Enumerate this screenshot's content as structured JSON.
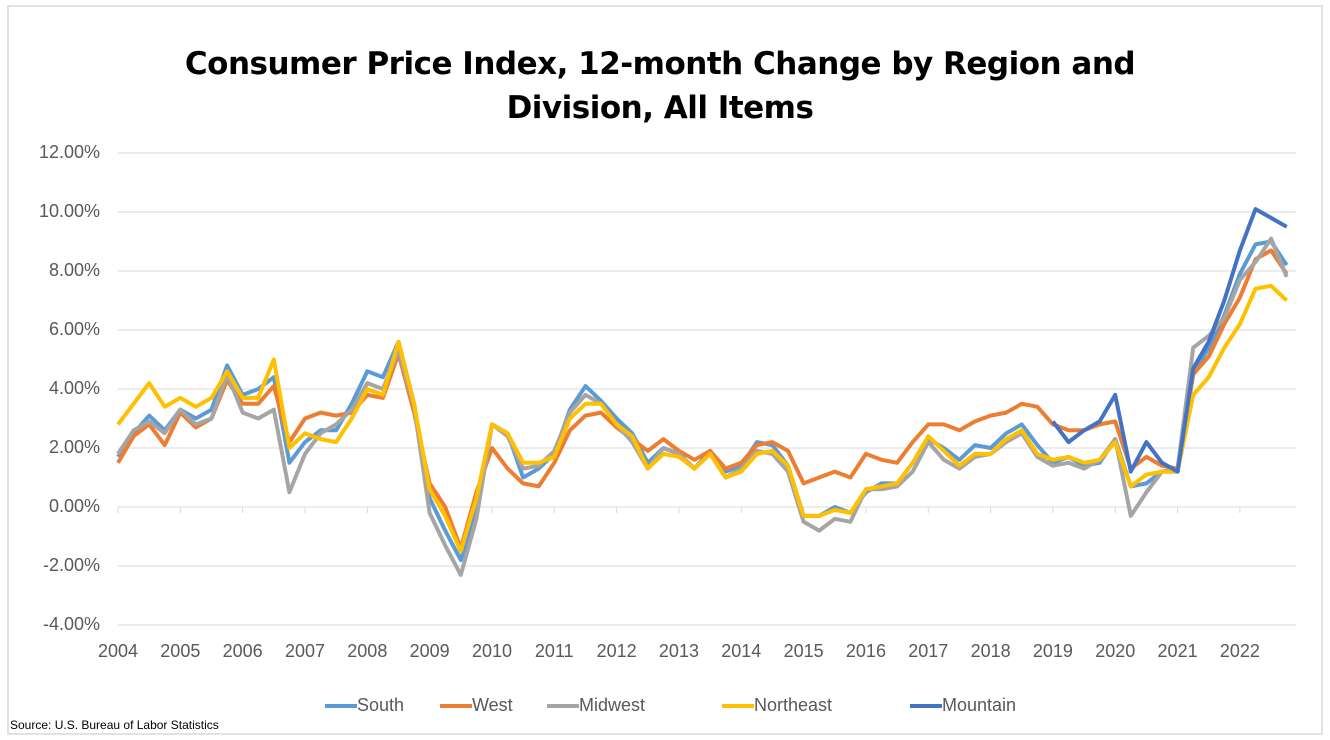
{
  "chart_data": {
    "type": "line",
    "title": "Consumer Price Index, 12-month Change by Region and Division, All Items",
    "source": "Source: U.S. Bureau of Labor Statistics",
    "x": [
      2004,
      2004.25,
      2004.5,
      2004.75,
      2005,
      2005.25,
      2005.5,
      2005.75,
      2006,
      2006.25,
      2006.5,
      2006.75,
      2007,
      2007.25,
      2007.5,
      2007.75,
      2008,
      2008.25,
      2008.5,
      2008.75,
      2009,
      2009.25,
      2009.5,
      2009.75,
      2010,
      2010.25,
      2010.5,
      2010.75,
      2011,
      2011.25,
      2011.5,
      2011.75,
      2012,
      2012.25,
      2012.5,
      2012.75,
      2013,
      2013.25,
      2013.5,
      2013.75,
      2014,
      2014.25,
      2014.5,
      2014.75,
      2015,
      2015.25,
      2015.5,
      2015.75,
      2016,
      2016.25,
      2016.5,
      2016.75,
      2017,
      2017.25,
      2017.5,
      2017.75,
      2018,
      2018.25,
      2018.5,
      2018.75,
      2019,
      2019.25,
      2019.5,
      2019.75,
      2020,
      2020.25,
      2020.5,
      2020.75,
      2021,
      2021.25,
      2021.5,
      2021.75,
      2022,
      2022.25,
      2022.5,
      2022.75
    ],
    "xlim": [
      2004,
      2022.9
    ],
    "xticks": [
      2004,
      2005,
      2006,
      2007,
      2008,
      2009,
      2010,
      2011,
      2012,
      2013,
      2014,
      2015,
      2016,
      2017,
      2018,
      2019,
      2020,
      2021,
      2022
    ],
    "ylim": [
      -4,
      12
    ],
    "yticks": [
      {
        "value": -4,
        "label": "-4.00%"
      },
      {
        "value": -2,
        "label": "-2.00%"
      },
      {
        "value": 0,
        "label": "0.00%"
      },
      {
        "value": 2,
        "label": "2.00%"
      },
      {
        "value": 4,
        "label": "4.00%"
      },
      {
        "value": 6,
        "label": "6.00%"
      },
      {
        "value": 8,
        "label": "8.00%"
      },
      {
        "value": 10,
        "label": "10.00%"
      },
      {
        "value": 12,
        "label": "12.00%"
      }
    ],
    "grid": true,
    "legend": "bottom",
    "series": [
      {
        "name": "South",
        "color": "#5b9bd5",
        "values": [
          1.7,
          2.5,
          3.1,
          2.6,
          3.3,
          3.0,
          3.3,
          4.8,
          3.8,
          4.0,
          4.4,
          1.5,
          2.2,
          2.6,
          2.6,
          3.5,
          4.6,
          4.4,
          5.6,
          3.5,
          0.3,
          -0.8,
          -1.8,
          0.0,
          2.8,
          2.5,
          1.0,
          1.3,
          1.8,
          3.3,
          4.1,
          3.6,
          3.0,
          2.5,
          1.5,
          2.0,
          1.8,
          1.3,
          1.9,
          1.2,
          1.4,
          2.2,
          2.1,
          1.4,
          -0.3,
          -0.3,
          0.0,
          -0.2,
          0.5,
          0.8,
          0.8,
          1.5,
          2.3,
          2.0,
          1.6,
          2.1,
          2.0,
          2.5,
          2.8,
          2.1,
          1.5,
          1.7,
          1.4,
          1.5,
          2.3,
          0.7,
          0.8,
          1.2,
          1.2,
          4.5,
          5.4,
          6.5,
          7.9,
          8.9,
          9.0,
          8.2
        ]
      },
      {
        "name": "West",
        "color": "#ed7d31",
        "values": [
          1.5,
          2.4,
          2.8,
          2.1,
          3.2,
          2.7,
          3.0,
          4.3,
          3.5,
          3.5,
          4.1,
          2.2,
          3.0,
          3.2,
          3.1,
          3.2,
          3.8,
          3.7,
          5.2,
          3.2,
          0.8,
          0.0,
          -1.4,
          0.5,
          2.0,
          1.3,
          0.8,
          0.7,
          1.5,
          2.6,
          3.1,
          3.2,
          2.7,
          2.3,
          1.9,
          2.3,
          1.9,
          1.6,
          1.9,
          1.3,
          1.5,
          2.1,
          2.2,
          1.9,
          0.8,
          1.0,
          1.2,
          1.0,
          1.8,
          1.6,
          1.5,
          2.2,
          2.8,
          2.8,
          2.6,
          2.9,
          3.1,
          3.2,
          3.5,
          3.4,
          2.8,
          2.6,
          2.6,
          2.8,
          2.9,
          1.3,
          1.7,
          1.4,
          1.3,
          4.5,
          5.1,
          6.2,
          7.1,
          8.4,
          8.7,
          7.9
        ]
      },
      {
        "name": "Midwest",
        "color": "#a5a5a5",
        "values": [
          1.8,
          2.6,
          2.9,
          2.5,
          3.3,
          2.8,
          3.0,
          4.5,
          3.2,
          3.0,
          3.3,
          0.5,
          1.8,
          2.5,
          2.8,
          3.3,
          4.2,
          4.0,
          5.3,
          3.4,
          -0.2,
          -1.3,
          -2.3,
          -0.4,
          2.8,
          2.4,
          1.3,
          1.4,
          1.9,
          3.2,
          3.8,
          3.5,
          2.8,
          2.2,
          1.3,
          2.0,
          1.8,
          1.3,
          1.8,
          1.0,
          1.3,
          1.9,
          1.8,
          1.2,
          -0.5,
          -0.8,
          -0.4,
          -0.5,
          0.6,
          0.6,
          0.7,
          1.2,
          2.2,
          1.6,
          1.3,
          1.7,
          1.8,
          2.2,
          2.5,
          1.7,
          1.4,
          1.5,
          1.3,
          1.6,
          2.3,
          -0.3,
          0.5,
          1.2,
          1.3,
          5.4,
          5.8,
          6.4,
          7.7,
          8.3,
          9.1,
          7.8
        ]
      },
      {
        "name": "Northeast",
        "color": "#ffc000",
        "values": [
          2.8,
          3.5,
          4.2,
          3.4,
          3.7,
          3.4,
          3.7,
          4.6,
          3.7,
          3.7,
          5.0,
          2.0,
          2.5,
          2.3,
          2.2,
          3.0,
          4.0,
          3.8,
          5.6,
          3.5,
          0.6,
          -0.3,
          -1.5,
          0.3,
          2.8,
          2.5,
          1.5,
          1.5,
          1.7,
          3.0,
          3.5,
          3.5,
          2.8,
          2.4,
          1.3,
          1.8,
          1.7,
          1.3,
          1.8,
          1.0,
          1.2,
          1.8,
          1.9,
          1.4,
          -0.3,
          -0.3,
          -0.1,
          -0.2,
          0.6,
          0.7,
          0.8,
          1.5,
          2.4,
          1.9,
          1.4,
          1.8,
          1.8,
          2.3,
          2.6,
          1.8,
          1.6,
          1.7,
          1.5,
          1.6,
          2.2,
          0.7,
          1.1,
          1.2,
          1.2,
          3.8,
          4.4,
          5.4,
          6.2,
          7.4,
          7.5,
          7.0
        ]
      },
      {
        "name": "Mountain",
        "color": "#4472c4",
        "values": [
          null,
          null,
          null,
          null,
          null,
          null,
          null,
          null,
          null,
          null,
          null,
          null,
          null,
          null,
          null,
          null,
          null,
          null,
          null,
          null,
          null,
          null,
          null,
          null,
          null,
          null,
          null,
          null,
          null,
          null,
          null,
          null,
          null,
          null,
          null,
          null,
          null,
          null,
          null,
          null,
          null,
          null,
          null,
          null,
          null,
          null,
          null,
          null,
          null,
          null,
          null,
          null,
          null,
          null,
          null,
          null,
          null,
          null,
          null,
          null,
          2.9,
          2.2,
          2.6,
          2.9,
          3.8,
          1.2,
          2.2,
          1.5,
          1.2,
          4.7,
          5.6,
          7.0,
          8.7,
          10.1,
          9.8,
          9.5
        ]
      }
    ]
  }
}
